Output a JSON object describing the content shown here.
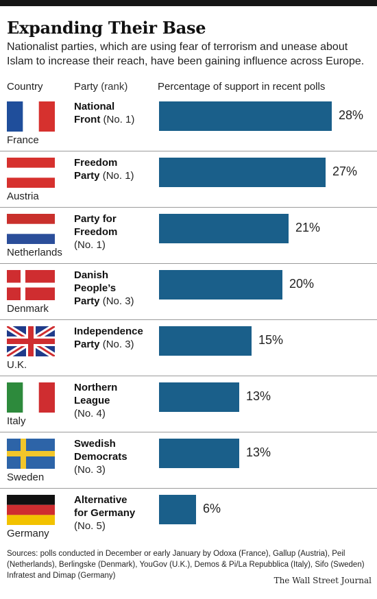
{
  "header": {
    "title": "Expanding Their Base",
    "subtitle": "Nationalist parties, which are using fear of terrorism and unease about Islam to increase their reach, have been gaining influence across Europe."
  },
  "columns": {
    "country": "Country",
    "party": "Party",
    "rank": "(rank)",
    "percentage": "Percentage of support in recent polls"
  },
  "rows": [
    {
      "country": "France",
      "party_lines": [
        "National",
        "Front"
      ],
      "rank_label": "(No. 1)",
      "rank_inline": true,
      "value_label": "28%",
      "flag": "france-flag"
    },
    {
      "country": "Austria",
      "party_lines": [
        "Freedom",
        "Party"
      ],
      "rank_label": "(No. 1)",
      "rank_inline": true,
      "value_label": "27%",
      "flag": "austria-flag"
    },
    {
      "country": "Netherlands",
      "party_lines": [
        "Party for",
        "Freedom"
      ],
      "rank_label": "(No. 1)",
      "rank_inline": false,
      "value_label": "21%",
      "flag": "netherlands-flag"
    },
    {
      "country": "Denmark",
      "party_lines": [
        "Danish",
        "People’s",
        "Party"
      ],
      "rank_label": "(No. 3)",
      "rank_inline": true,
      "value_label": "20%",
      "flag": "denmark-flag"
    },
    {
      "country": "U.K.",
      "party_lines": [
        "Independence",
        "Party"
      ],
      "rank_label": "(No. 3)",
      "rank_inline": true,
      "value_label": "15%",
      "flag": "uk-flag"
    },
    {
      "country": "Italy",
      "party_lines": [
        "Northern",
        "League"
      ],
      "rank_label": "(No. 4)",
      "rank_inline": false,
      "value_label": "13%",
      "flag": "italy-flag"
    },
    {
      "country": "Sweden",
      "party_lines": [
        "Swedish",
        "Democrats"
      ],
      "rank_label": "(No. 3)",
      "rank_inline": false,
      "value_label": "13%",
      "flag": "sweden-flag"
    },
    {
      "country": "Germany",
      "party_lines": [
        "Alternative",
        "for Germany"
      ],
      "rank_label": "(No. 5)",
      "rank_inline": false,
      "value_label": "6%",
      "flag": "germany-flag"
    }
  ],
  "chart_data": {
    "type": "bar",
    "orientation": "horizontal",
    "title": "Expanding Their Base",
    "xlabel": "Percentage of support in recent polls",
    "categories": [
      "France",
      "Austria",
      "Netherlands",
      "Denmark",
      "U.K.",
      "Italy",
      "Sweden",
      "Germany"
    ],
    "values": [
      28,
      27,
      21,
      20,
      15,
      13,
      13,
      6
    ],
    "unit": "%",
    "xlim": [
      0,
      28
    ],
    "grid": false,
    "legend": "none",
    "bar_color": "#1a5f8a"
  },
  "footer": {
    "sources": "Sources: polls conducted in December or early January by Odoxa (France), Gallup (Austria), Peil (Netherlands), Berlingske (Denmark), YouGov (U.K.), Demos & Pi/La Repubblica (Italy), Sifo (Sweden) Infratest and  Dimap (Germany)",
    "credit": "The Wall Street Journal"
  },
  "colors": {
    "bar": "#1a5f8a",
    "fr_blue": "#1f4e9b",
    "fr_red": "#d6312e",
    "at_red": "#d6312e",
    "nl_red": "#c9302c",
    "nl_blue": "#2b4e9a",
    "dk_red": "#cf2d30",
    "uk_blue": "#1f3b8a",
    "uk_red": "#cf2d30",
    "it_green": "#2d8a3c",
    "it_red": "#cf2d30",
    "se_blue": "#2d64a8",
    "se_yellow": "#f2c62a",
    "de_black": "#111111",
    "de_red": "#cf2d30",
    "de_gold": "#f2c200"
  }
}
